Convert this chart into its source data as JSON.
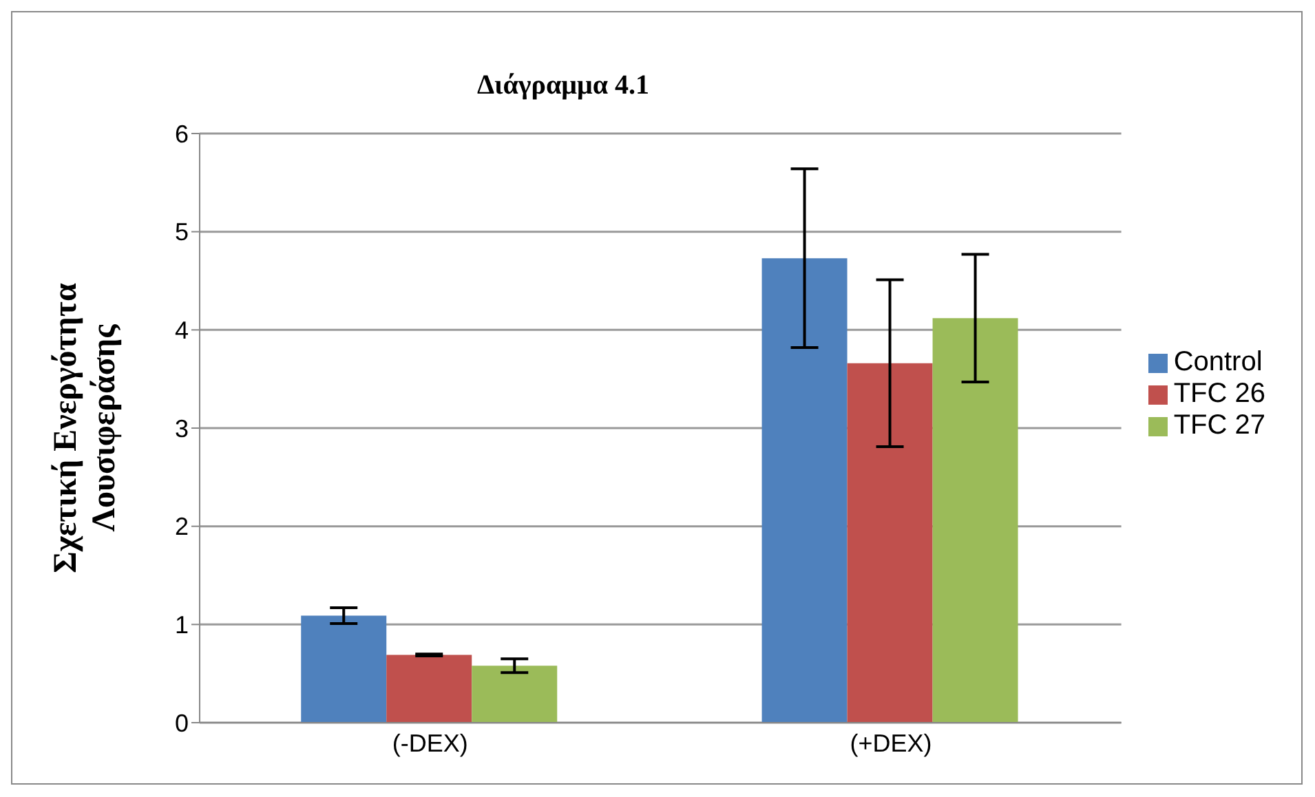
{
  "chart_data": {
    "type": "bar",
    "title": "Διάγραμμα 4.1",
    "ylabel": "Σχετική Ενεργότητα\nΛουσιφεράσης",
    "categories": [
      "(-DEX)",
      "(+DEX)"
    ],
    "series": [
      {
        "name": "Control",
        "color": "#4f81bd",
        "values": [
          1.09,
          4.73
        ],
        "errors": [
          0.08,
          0.91
        ]
      },
      {
        "name": "TFC 26",
        "color": "#c0504d",
        "values": [
          0.69,
          3.66
        ],
        "errors": [
          0.01,
          0.85
        ]
      },
      {
        "name": "TFC 27",
        "color": "#9bbb59",
        "values": [
          0.58,
          4.12
        ],
        "errors": [
          0.07,
          0.65
        ]
      }
    ],
    "ylim": [
      0,
      6
    ],
    "yticks": [
      0,
      1,
      2,
      3,
      4,
      5,
      6
    ],
    "grid": "y",
    "legend": "right"
  }
}
